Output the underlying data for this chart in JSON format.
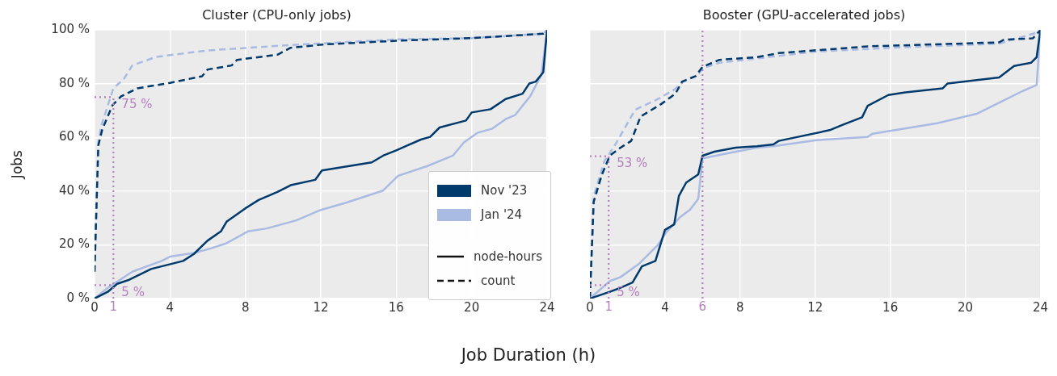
{
  "chart_data": [
    {
      "type": "line",
      "title": "Cluster (CPU-only jobs)",
      "xlabel": "Job Duration (h)",
      "ylabel": "Jobs",
      "xlim": [
        0,
        24
      ],
      "xticks": [
        0,
        4,
        8,
        12,
        16,
        20,
        24
      ],
      "ylim": [
        0,
        100
      ],
      "yticks": [
        {
          "value": 0,
          "label": "0 %"
        },
        {
          "value": 20,
          "label": "20 %"
        },
        {
          "value": 40,
          "label": "40 %"
        },
        {
          "value": 60,
          "label": "60 %"
        },
        {
          "value": 80,
          "label": "80 %"
        },
        {
          "value": 100,
          "label": "100 %"
        }
      ],
      "grid": true,
      "legend": "bottom right",
      "marker": "none",
      "annotations": [
        "node-hours",
        "count"
      ],
      "ref_lines": [
        {
          "axis": "x",
          "value": 1,
          "label": "1",
          "color": "#b57fbf",
          "line_style": "dotted"
        },
        {
          "axis": "y",
          "value": 75,
          "label": "75 %",
          "color": "#b57fbf",
          "line_style": "dotted"
        },
        {
          "axis": "y",
          "value": 5,
          "label": "5 %",
          "color": "#b57fbf",
          "line_style": "dotted"
        }
      ],
      "series": [
        {
          "name": "Nov '23",
          "color": "#003a6d",
          "line_style": "solid",
          "x": [
            0,
            0.7,
            1.2,
            1.84,
            3,
            4.7,
            5.27,
            6,
            6.7,
            7,
            8,
            8.7,
            9.7,
            10.4,
            11.7,
            12.06,
            14.7,
            15.3,
            16,
            17.3,
            17.8,
            18.3,
            19.7,
            20,
            21,
            21.8,
            22.7,
            23.06,
            23.4,
            23.8,
            24
          ],
          "values": [
            0,
            2.5,
            5.5,
            7,
            11,
            14,
            16.6,
            21.6,
            25,
            28.6,
            33.6,
            36.7,
            39.7,
            42.2,
            44.2,
            47.7,
            50.7,
            53.2,
            55.2,
            59.2,
            60.2,
            63.7,
            66.3,
            69.3,
            70.5,
            74.3,
            76.3,
            80.1,
            80.8,
            84.3,
            100
          ]
        },
        {
          "name": "Jan '24",
          "color": "#aabbe3",
          "line_style": "solid",
          "x": [
            0,
            0.7,
            2,
            3.56,
            4,
            5.27,
            6.13,
            7,
            8.13,
            9.13,
            10.7,
            12,
            13.3,
            15.3,
            16.1,
            17.6,
            19,
            19.6,
            20.3,
            21.1,
            21.8,
            22.3,
            23.1,
            23.7,
            24
          ],
          "values": [
            0,
            4,
            10,
            14,
            15.6,
            17,
            18.6,
            20.6,
            25,
            26.1,
            29.1,
            33,
            35.6,
            40.2,
            45.7,
            49.2,
            53.2,
            58.2,
            61.7,
            63.3,
            66.8,
            68.3,
            75.3,
            83.3,
            100
          ]
        },
        {
          "color": "#003a6d",
          "line_style": "dashed",
          "x": [
            0,
            0.2,
            0.41,
            0.95,
            1.41,
            2.27,
            4,
            5.7,
            6,
            7.27,
            7.56,
            9.7,
            10.4,
            12.1,
            16,
            20,
            23.8,
            24
          ],
          "values": [
            10,
            57,
            63,
            72,
            75.3,
            78.3,
            80.3,
            82.8,
            85.3,
            86.8,
            88.9,
            90.8,
            93.4,
            94.6,
            96,
            97,
            98.6,
            100
          ]
        },
        {
          "color": "#aabbe3",
          "line_style": "dashed",
          "x": [
            0,
            0.2,
            0.34,
            1,
            1.56,
            2,
            3.27,
            6,
            10.4,
            12,
            16,
            20,
            23.8,
            24
          ],
          "values": [
            10,
            58,
            64,
            78.3,
            81.8,
            86.8,
            90,
            92.4,
            94.4,
            95,
            96.5,
            97,
            98.6,
            100
          ]
        }
      ]
    },
    {
      "type": "line",
      "title": "Booster (GPU-accelerated jobs)",
      "xlim": [
        0,
        24
      ],
      "xticks": [
        0,
        4,
        8,
        12,
        16,
        20,
        24
      ],
      "ylim": [
        0,
        100
      ],
      "yticks": [
        0,
        20,
        40,
        60,
        80,
        100
      ],
      "tick_labels": "x",
      "grid": true,
      "marker": "none",
      "ref_lines": [
        {
          "axis": "x",
          "value": 1,
          "label": "1",
          "color": "#b57fbf",
          "line_style": "dotted"
        },
        {
          "axis": "x",
          "value": 6,
          "label": "6",
          "color": "#b57fbf",
          "line_style": "dotted"
        },
        {
          "axis": "y",
          "value": 53,
          "label": "53 %",
          "color": "#b57fbf",
          "line_style": "dotted"
        },
        {
          "axis": "y",
          "value": 5,
          "label": "5 %",
          "color": "#b57fbf",
          "line_style": "dotted"
        }
      ],
      "series": [
        {
          "color": "#003a6d",
          "line_style": "solid",
          "x": [
            0,
            1.06,
            1.63,
            2.27,
            2.77,
            3.49,
            4,
            4.49,
            4.74,
            5.13,
            5.77,
            6,
            6.63,
            7.77,
            8.9,
            9.77,
            10.06,
            12.77,
            13.5,
            14.5,
            14.8,
            15.9,
            16.8,
            18.8,
            19.06,
            21.8,
            22.6,
            23.5,
            23.8,
            24
          ],
          "values": [
            0,
            2.5,
            4,
            6,
            12,
            14,
            25.6,
            27.6,
            38.2,
            43.2,
            46.2,
            53.2,
            54.7,
            56.2,
            56.7,
            57.4,
            58.7,
            62.7,
            64.8,
            67.5,
            71.8,
            75.8,
            76.8,
            78.3,
            80.1,
            82.3,
            86.6,
            87.8,
            89.9,
            100
          ]
        },
        {
          "color": "#aabbe3",
          "line_style": "solid",
          "x": [
            0,
            1.06,
            1.63,
            2.63,
            3.63,
            4.06,
            4.77,
            5.34,
            5.77,
            6,
            7.77,
            8.9,
            9.77,
            12.06,
            14.8,
            15.06,
            18.5,
            20.6,
            21.9,
            23.06,
            23.8,
            24
          ],
          "values": [
            0,
            6.5,
            8,
            13,
            20,
            24.6,
            30.1,
            33.1,
            37.1,
            52.2,
            54.7,
            56.2,
            56.7,
            59,
            60.2,
            61.4,
            65.3,
            68.8,
            73.3,
            77.3,
            79.5,
            100
          ]
        },
        {
          "color": "#003a6d",
          "line_style": "dashed",
          "x": [
            0,
            0.2,
            0.63,
            1.06,
            1.63,
            2.2,
            2.7,
            3.77,
            4.56,
            4.91,
            5.63,
            6,
            6.9,
            8.9,
            10.06,
            14.8,
            21.8,
            22.06,
            23.6,
            24
          ],
          "values": [
            0,
            36,
            46,
            53.2,
            56.2,
            58.7,
            67.8,
            72.3,
            76.3,
            80.8,
            82.8,
            86.3,
            88.9,
            89.9,
            91.4,
            93.9,
            95.4,
            96.4,
            96.9,
            100
          ]
        },
        {
          "color": "#aabbe3",
          "line_style": "dashed",
          "x": [
            0,
            0.2,
            0.77,
            1.34,
            2.41,
            3.63,
            4.49,
            4.99,
            5.77,
            6,
            6.9,
            8.9,
            11.9,
            16.1,
            21.8,
            23.8,
            24
          ],
          "values": [
            0,
            38,
            51.2,
            57.2,
            70.3,
            74.3,
            77.8,
            80.8,
            83.3,
            85.8,
            87.8,
            89.4,
            91.9,
            93.4,
            94.9,
            99,
            100
          ]
        }
      ]
    }
  ]
}
